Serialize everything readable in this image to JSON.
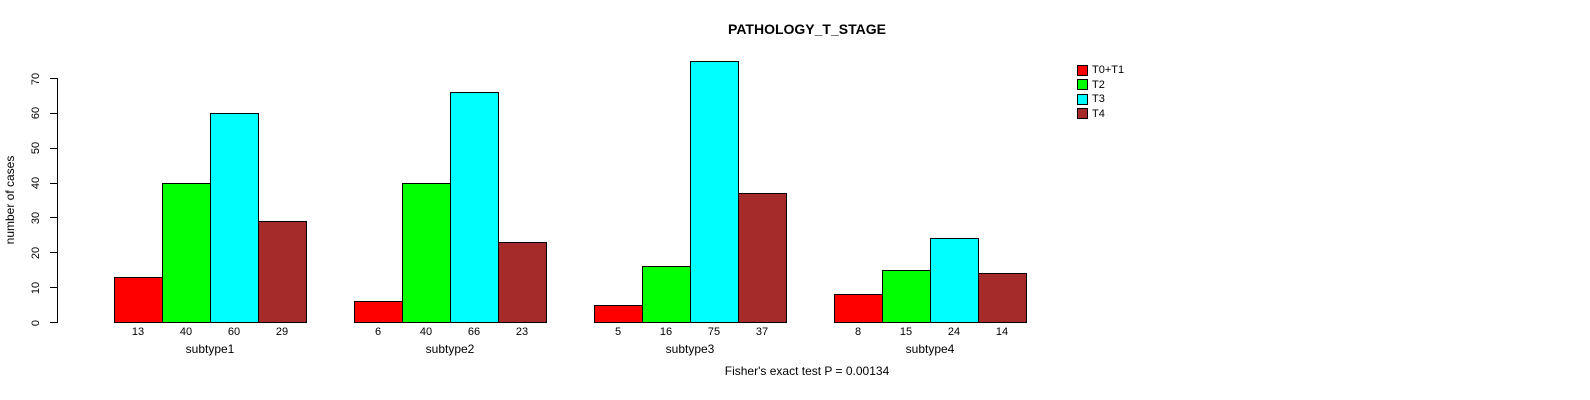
{
  "title": "PATHOLOGY_T_STAGE",
  "caption": "Fisher's exact test P = 0.00134",
  "ylabel": "number of cases",
  "colors": {
    "red": "#FF0000",
    "green": "#00FF00",
    "cyan": "#00FFFF",
    "brown": "#A52A2A",
    "axis": "#000000",
    "background": "#FFFFFF"
  },
  "chart_data": {
    "type": "bar",
    "title": "PATHOLOGY_T_STAGE",
    "subtitle": "",
    "categories": [
      "subtype1",
      "subtype2",
      "subtype3",
      "subtype4"
    ],
    "series": [
      {
        "name": "T0+T1",
        "color": "#FF0000",
        "values": [
          13,
          6,
          5,
          8
        ]
      },
      {
        "name": "T2",
        "color": "#00FF00",
        "values": [
          40,
          40,
          16,
          15
        ]
      },
      {
        "name": "T3",
        "color": "#00FFFF",
        "values": [
          60,
          66,
          75,
          24
        ]
      },
      {
        "name": "T4",
        "color": "#A52A2A",
        "values": [
          29,
          23,
          37,
          14
        ]
      }
    ],
    "xlabel": "",
    "ylabel": "number of cases",
    "ylim": [
      0,
      70
    ],
    "yticks": [
      0,
      10,
      20,
      30,
      40,
      50,
      60,
      70
    ],
    "bar_value_labels": {
      "subtype1": [
        13,
        40,
        60,
        29
      ],
      "subtype2": [
        6,
        40,
        66,
        23
      ],
      "subtype3": [
        5,
        16,
        75,
        37
      ],
      "subtype4": [
        8,
        15,
        24,
        14
      ]
    },
    "grid": false,
    "legend_position": "top-right",
    "legend_entries": [
      "T0+T1",
      "T2",
      "T3",
      "T4"
    ],
    "annotation": "Fisher's exact test P = 0.00134"
  }
}
